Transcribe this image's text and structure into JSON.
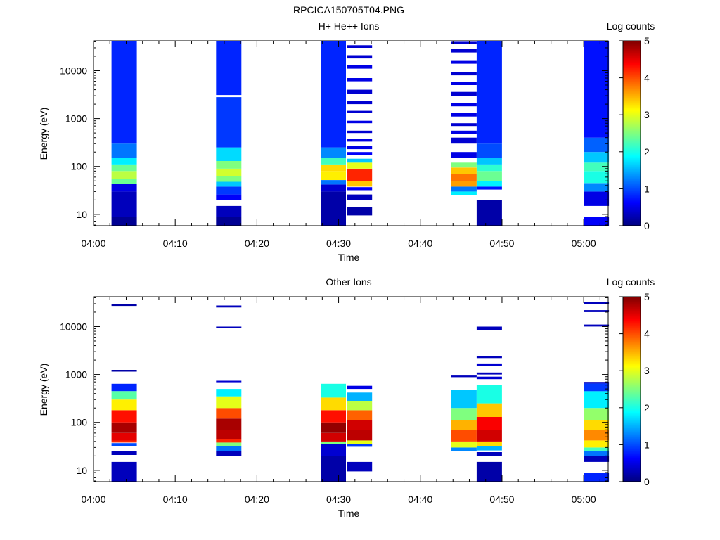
{
  "figure_title": "RPCICA150705T04.PNG",
  "colormap": [
    "#00007f",
    "#0000ff",
    "#007fff",
    "#00ffff",
    "#7fff7f",
    "#ffff00",
    "#ff7f00",
    "#ff0000",
    "#7f0000"
  ],
  "chart_data": [
    {
      "type": "heatmap",
      "title": "H+ He++ Ions",
      "xlabel": "Time",
      "ylabel": "Energy (eV)",
      "x_unit": "minutes after 04:00",
      "xlim": [
        0,
        63
      ],
      "x_ticks": [
        0,
        10,
        20,
        30,
        40,
        50,
        60
      ],
      "x_tick_labels": [
        "04:00",
        "04:10",
        "04:20",
        "04:30",
        "04:40",
        "04:50",
        "05:00"
      ],
      "y_scale": "log",
      "ylim": [
        5.8,
        42000
      ],
      "y_ticks": [
        10,
        100,
        1000,
        10000
      ],
      "y_tick_labels": [
        "10",
        "100",
        "1000",
        "10000"
      ],
      "colorbar": {
        "label": "Log counts",
        "range": [
          0,
          5
        ],
        "ticks": [
          0,
          1,
          2,
          3,
          4,
          5
        ],
        "tick_labels": [
          "0",
          "1",
          "2",
          "3",
          "4",
          "5"
        ]
      },
      "columns": [
        {
          "t0": 2.2,
          "t1": 5.3,
          "bands": [
            [
              5.8,
              9,
              0.1
            ],
            [
              9,
              30,
              0.3
            ],
            [
              30,
              43,
              0.5
            ],
            [
              43,
              55,
              2.4
            ],
            [
              55,
              80,
              2.8
            ],
            [
              80,
              110,
              2.4
            ],
            [
              110,
              150,
              1.8
            ],
            [
              150,
              300,
              1.2
            ],
            [
              300,
              42000,
              0.8
            ]
          ]
        },
        {
          "t0": 15.0,
          "t1": 18.1,
          "bands": [
            [
              5.8,
              9,
              0.1
            ],
            [
              9,
              15,
              0.3
            ],
            [
              20,
              26,
              0.6
            ],
            [
              26,
              38,
              0.9
            ],
            [
              38,
              48,
              1.6
            ],
            [
              48,
              62,
              2.5
            ],
            [
              62,
              90,
              2.9
            ],
            [
              90,
              130,
              2.5
            ],
            [
              130,
              250,
              1.7
            ],
            [
              250,
              2800,
              0.9
            ],
            [
              3100,
              42000,
              0.8
            ]
          ]
        },
        {
          "t0": 27.8,
          "t1": 30.9,
          "bands": [
            [
              5.8,
              30,
              0.2
            ],
            [
              30,
              42,
              0.4
            ],
            [
              42,
              52,
              1.2
            ],
            [
              52,
              80,
              3.2
            ],
            [
              80,
              110,
              3.3
            ],
            [
              110,
              150,
              2.2
            ],
            [
              150,
              250,
              1.3
            ],
            [
              250,
              42000,
              0.8
            ]
          ]
        },
        {
          "t0": 31.0,
          "t1": 34.1,
          "bands": [
            [
              9.5,
              14,
              0.2
            ],
            [
              20,
              26,
              0.3
            ],
            [
              32,
              37,
              0.6
            ],
            [
              38,
              50,
              3.4
            ],
            [
              50,
              90,
              4.2
            ],
            [
              90,
              120,
              3.0
            ],
            [
              120,
              145,
              1.6
            ],
            [
              170,
              200,
              0.6
            ],
            [
              230,
              270,
              0.5
            ],
            [
              330,
              380,
              0.5
            ],
            [
              500,
              560,
              0.4
            ],
            [
              800,
              900,
              0.5
            ],
            [
              1300,
              1450,
              0.4
            ],
            [
              2000,
              2300,
              0.4
            ],
            [
              3300,
              4000,
              0.4
            ],
            [
              6000,
              7000,
              0.5
            ],
            [
              11000,
              13000,
              0.5
            ],
            [
              18000,
              21000,
              0.4
            ],
            [
              30000,
              34000,
              0.4
            ]
          ]
        },
        {
          "t0": 43.8,
          "t1": 46.9,
          "bands": [
            [
              25,
              30,
              1.8
            ],
            [
              30,
              38,
              1.2
            ],
            [
              38,
              50,
              3.6
            ],
            [
              50,
              70,
              3.8
            ],
            [
              70,
              95,
              3.4
            ],
            [
              95,
              120,
              2.5
            ],
            [
              150,
              200,
              0.5
            ],
            [
              300,
              400,
              0.4
            ],
            [
              480,
              560,
              0.5
            ],
            [
              700,
              800,
              0.4
            ],
            [
              1100,
              1300,
              0.5
            ],
            [
              1800,
              2100,
              0.5
            ],
            [
              3000,
              3600,
              0.4
            ],
            [
              5000,
              5800,
              0.5
            ],
            [
              8000,
              9500,
              0.4
            ],
            [
              14000,
              16000,
              0.5
            ],
            [
              24000,
              29000,
              0.4
            ],
            [
              36000,
              40000,
              0.4
            ]
          ]
        },
        {
          "t0": 46.9,
          "t1": 50.0,
          "bands": [
            [
              5.8,
              20,
              0.2
            ],
            [
              33,
              38,
              0.7
            ],
            [
              38,
              50,
              1.8
            ],
            [
              50,
              80,
              2.4
            ],
            [
              80,
              110,
              2.1
            ],
            [
              110,
              150,
              1.6
            ],
            [
              150,
              300,
              1.0
            ],
            [
              300,
              42000,
              0.8
            ]
          ]
        },
        {
          "t0": 60.0,
          "t1": 63.1,
          "bands": [
            [
              5.8,
              9,
              0.6
            ],
            [
              15,
              30,
              0.5
            ],
            [
              30,
              45,
              1.3
            ],
            [
              45,
              80,
              2.0
            ],
            [
              80,
              120,
              2.2
            ],
            [
              120,
              200,
              1.6
            ],
            [
              200,
              400,
              1.1
            ],
            [
              400,
              42000,
              0.7
            ]
          ]
        }
      ]
    },
    {
      "type": "heatmap",
      "title": "Other Ions",
      "xlabel": "Time",
      "ylabel": "Energy (eV)",
      "x_unit": "minutes after 04:00",
      "xlim": [
        0,
        63
      ],
      "x_ticks": [
        0,
        10,
        20,
        30,
        40,
        50,
        60
      ],
      "x_tick_labels": [
        "04:00",
        "04:10",
        "04:20",
        "04:30",
        "04:40",
        "04:50",
        "05:00"
      ],
      "y_scale": "log",
      "ylim": [
        5.8,
        42000
      ],
      "y_ticks": [
        10,
        100,
        1000,
        10000
      ],
      "y_tick_labels": [
        "10",
        "100",
        "1000",
        "10000"
      ],
      "colorbar": {
        "label": "Log counts",
        "range": [
          0,
          5
        ],
        "ticks": [
          0,
          1,
          2,
          3,
          4,
          5
        ],
        "tick_labels": [
          "0",
          "1",
          "2",
          "3",
          "4",
          "5"
        ]
      },
      "columns": [
        {
          "t0": 2.2,
          "t1": 5.3,
          "bands": [
            [
              5.8,
              15,
              0.3
            ],
            [
              21,
              25,
              0.3
            ],
            [
              32,
              37,
              1.0
            ],
            [
              38,
              42,
              4.2
            ],
            [
              42,
              60,
              4.5
            ],
            [
              60,
              100,
              4.8
            ],
            [
              100,
              180,
              4.3
            ],
            [
              180,
              300,
              3.2
            ],
            [
              300,
              450,
              2.3
            ],
            [
              450,
              640,
              0.8
            ],
            [
              1150,
              1250,
              0.2
            ],
            [
              27000,
              29000,
              0.2
            ]
          ]
        },
        {
          "t0": 15.0,
          "t1": 18.1,
          "bands": [
            [
              20,
              25,
              0.3
            ],
            [
              25,
              32,
              1.2
            ],
            [
              32,
              38,
              2.5
            ],
            [
              38,
              45,
              4.2
            ],
            [
              45,
              70,
              4.7
            ],
            [
              70,
              120,
              4.8
            ],
            [
              120,
              200,
              4.0
            ],
            [
              200,
              350,
              3.0
            ],
            [
              350,
              500,
              1.8
            ],
            [
              690,
              740,
              0.4
            ],
            [
              9500,
              10000,
              0.3
            ],
            [
              25000,
              27500,
              0.3
            ]
          ]
        },
        {
          "t0": 27.8,
          "t1": 30.9,
          "bands": [
            [
              5.8,
              20,
              0.2
            ],
            [
              20,
              35,
              0.4
            ],
            [
              35,
              40,
              2.5
            ],
            [
              40,
              60,
              4.6
            ],
            [
              60,
              100,
              4.9
            ],
            [
              100,
              180,
              4.3
            ],
            [
              180,
              330,
              3.3
            ],
            [
              330,
              640,
              2.0
            ]
          ]
        },
        {
          "t0": 31.0,
          "t1": 34.1,
          "bands": [
            [
              9.5,
              15,
              0.3
            ],
            [
              31,
              36,
              0.9
            ],
            [
              36,
              42,
              3.0
            ],
            [
              42,
              70,
              4.7
            ],
            [
              70,
              110,
              4.6
            ],
            [
              110,
              180,
              3.9
            ],
            [
              180,
              280,
              2.8
            ],
            [
              280,
              420,
              1.5
            ],
            [
              500,
              580,
              0.5
            ]
          ]
        },
        {
          "t0": 43.8,
          "t1": 46.9,
          "bands": [
            [
              25,
              30,
              1.3
            ],
            [
              30,
              40,
              3.0
            ],
            [
              40,
              70,
              4.0
            ],
            [
              70,
              110,
              3.5
            ],
            [
              110,
              200,
              2.5
            ],
            [
              200,
              480,
              1.6
            ],
            [
              880,
              950,
              0.3
            ]
          ]
        },
        {
          "t0": 46.9,
          "t1": 50.0,
          "bands": [
            [
              5.8,
              15,
              0.2
            ],
            [
              20,
              24,
              0.3
            ],
            [
              26,
              32,
              1.5
            ],
            [
              32,
              40,
              3.3
            ],
            [
              40,
              70,
              4.6
            ],
            [
              70,
              130,
              4.4
            ],
            [
              130,
              250,
              3.4
            ],
            [
              250,
              600,
              2.0
            ],
            [
              800,
              900,
              0.4
            ],
            [
              1000,
              1100,
              0.3
            ],
            [
              1500,
              1700,
              0.4
            ],
            [
              2200,
              2400,
              0.3
            ],
            [
              8500,
              10000,
              0.3
            ]
          ]
        },
        {
          "t0": 60.0,
          "t1": 63.1,
          "bands": [
            [
              5.8,
              9,
              0.8
            ],
            [
              15,
              20,
              0.3
            ],
            [
              20,
              25,
              1.2
            ],
            [
              25,
              30,
              2.2
            ],
            [
              30,
              42,
              3.2
            ],
            [
              42,
              70,
              3.7
            ],
            [
              70,
              110,
              3.3
            ],
            [
              110,
              200,
              2.6
            ],
            [
              200,
              450,
              1.8
            ],
            [
              450,
              650,
              0.9
            ],
            [
              650,
              700,
              0.3
            ],
            [
              10000,
              11000,
              0.3
            ],
            [
              20000,
              22000,
              0.3
            ],
            [
              29000,
              32000,
              0.3
            ]
          ]
        }
      ]
    }
  ]
}
